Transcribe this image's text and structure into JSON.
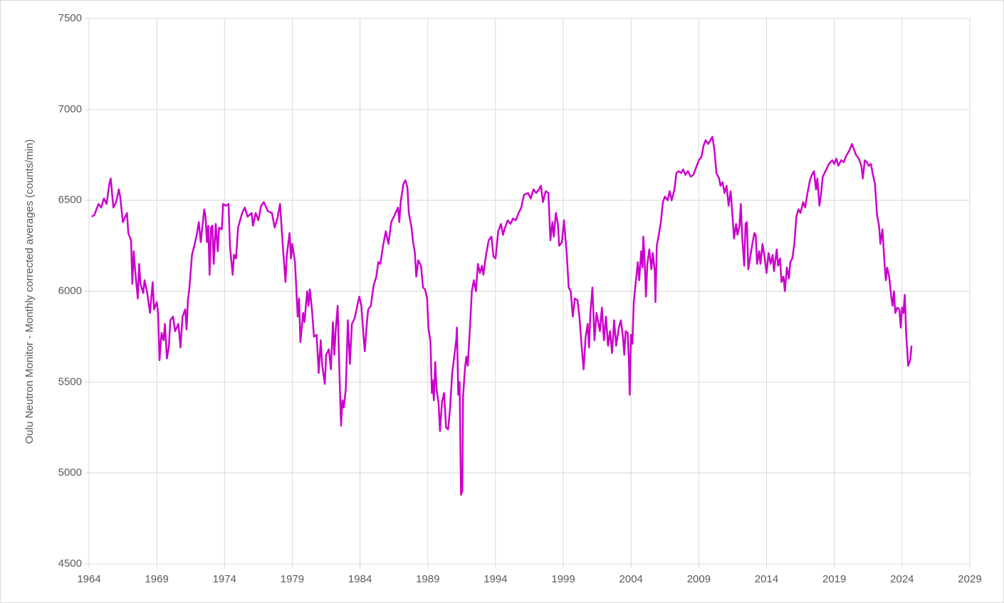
{
  "chart_data": {
    "type": "line",
    "y_label": "Oulu Neutron Monitor - Monthly corrected averages (counts/min)",
    "color": "#cc00cc",
    "grid": true,
    "xlim": [
      1964,
      2029
    ],
    "xticks": [
      1964,
      1969,
      1974,
      1979,
      1984,
      1989,
      1994,
      1999,
      2004,
      2009,
      2014,
      2019,
      2024,
      2029
    ],
    "ylim": [
      4500,
      7500
    ],
    "yticks": [
      4500,
      5000,
      5500,
      6000,
      6500,
      7000,
      7500
    ],
    "x": [
      1964.2,
      1964.4,
      1964.7,
      1964.9,
      1965.1,
      1965.3,
      1965.5,
      1965.6,
      1965.8,
      1966.0,
      1966.2,
      1966.3,
      1966.5,
      1966.8,
      1966.9,
      1967.1,
      1967.2,
      1967.3,
      1967.4,
      1967.6,
      1967.7,
      1967.8,
      1968.0,
      1968.1,
      1968.3,
      1968.5,
      1968.7,
      1968.8,
      1969.0,
      1969.1,
      1969.2,
      1969.35,
      1969.5,
      1969.6,
      1969.75,
      1969.9,
      1970.0,
      1970.2,
      1970.35,
      1970.6,
      1970.75,
      1970.9,
      1971.1,
      1971.2,
      1971.3,
      1971.4,
      1971.6,
      1971.8,
      1971.95,
      1972.1,
      1972.25,
      1972.5,
      1972.6,
      1972.7,
      1972.8,
      1972.9,
      1973.0,
      1973.1,
      1973.2,
      1973.35,
      1973.5,
      1973.6,
      1973.8,
      1973.9,
      1974.1,
      1974.3,
      1974.4,
      1974.6,
      1974.7,
      1974.85,
      1975.0,
      1975.3,
      1975.5,
      1975.7,
      1976.0,
      1976.1,
      1976.3,
      1976.5,
      1976.7,
      1976.9,
      1977.2,
      1977.5,
      1977.7,
      1977.9,
      1978.1,
      1978.3,
      1978.5,
      1978.6,
      1978.8,
      1978.9,
      1979.0,
      1979.2,
      1979.4,
      1979.5,
      1979.6,
      1979.8,
      1979.9,
      1980.1,
      1980.2,
      1980.3,
      1980.45,
      1980.6,
      1980.8,
      1980.95,
      1981.1,
      1981.2,
      1981.4,
      1981.5,
      1981.7,
      1981.85,
      1982.0,
      1982.1,
      1982.2,
      1982.35,
      1982.5,
      1982.6,
      1982.7,
      1982.8,
      1982.95,
      1983.1,
      1983.25,
      1983.4,
      1983.6,
      1983.8,
      1983.95,
      1984.1,
      1984.2,
      1984.35,
      1984.5,
      1984.6,
      1984.8,
      1985.0,
      1985.2,
      1985.35,
      1985.5,
      1985.7,
      1985.9,
      1986.1,
      1986.3,
      1986.5,
      1986.8,
      1986.9,
      1987.0,
      1987.2,
      1987.35,
      1987.5,
      1987.6,
      1987.8,
      1987.9,
      1988.05,
      1988.15,
      1988.3,
      1988.5,
      1988.65,
      1988.8,
      1988.95,
      1989.05,
      1989.2,
      1989.3,
      1989.35,
      1989.45,
      1989.55,
      1989.65,
      1989.8,
      1989.9,
      1990.05,
      1990.2,
      1990.35,
      1990.5,
      1990.65,
      1990.8,
      1990.95,
      1991.1,
      1991.15,
      1991.25,
      1991.35,
      1991.45,
      1991.55,
      1991.6,
      1991.75,
      1991.85,
      1991.95,
      1992.1,
      1992.25,
      1992.4,
      1992.55,
      1992.7,
      1992.85,
      1993.0,
      1993.1,
      1993.3,
      1993.5,
      1993.7,
      1993.85,
      1994.0,
      1994.2,
      1994.4,
      1994.55,
      1994.7,
      1994.9,
      1995.1,
      1995.3,
      1995.5,
      1995.7,
      1995.9,
      1996.1,
      1996.4,
      1996.6,
      1996.8,
      1997.0,
      1997.2,
      1997.35,
      1997.5,
      1997.7,
      1997.9,
      1998.05,
      1998.2,
      1998.3,
      1998.45,
      1998.6,
      1998.7,
      1998.9,
      1999.05,
      1999.25,
      1999.4,
      1999.55,
      1999.7,
      1999.85,
      2000.05,
      2000.2,
      2000.35,
      2000.5,
      2000.65,
      2000.8,
      2000.9,
      2001.0,
      2001.15,
      2001.3,
      2001.45,
      2001.55,
      2001.7,
      2001.85,
      2002.0,
      2002.15,
      2002.3,
      2002.45,
      2002.6,
      2002.75,
      2002.9,
      2003.1,
      2003.25,
      2003.4,
      2003.5,
      2003.6,
      2003.75,
      2003.85,
      2003.9,
      2004.0,
      2004.1,
      2004.2,
      2004.35,
      2004.5,
      2004.6,
      2004.75,
      2004.85,
      2004.9,
      2005.0,
      2005.1,
      2005.2,
      2005.35,
      2005.5,
      2005.6,
      2005.75,
      2005.8,
      2005.9,
      2006.05,
      2006.2,
      2006.35,
      2006.5,
      2006.7,
      2006.85,
      2007.0,
      2007.2,
      2007.35,
      2007.5,
      2007.7,
      2007.85,
      2008.0,
      2008.2,
      2008.4,
      2008.6,
      2008.8,
      2009.0,
      2009.2,
      2009.35,
      2009.5,
      2009.7,
      2009.85,
      2010.0,
      2010.15,
      2010.3,
      2010.5,
      2010.6,
      2010.75,
      2010.9,
      2011.05,
      2011.2,
      2011.35,
      2011.5,
      2011.6,
      2011.75,
      2011.85,
      2012.0,
      2012.1,
      2012.2,
      2012.35,
      2012.45,
      2012.55,
      2012.65,
      2012.8,
      2012.95,
      2013.1,
      2013.2,
      2013.3,
      2013.45,
      2013.55,
      2013.7,
      2013.85,
      2014.0,
      2014.15,
      2014.3,
      2014.45,
      2014.55,
      2014.75,
      2014.85,
      2015.0,
      2015.1,
      2015.25,
      2015.35,
      2015.5,
      2015.65,
      2015.75,
      2015.9,
      2016.05,
      2016.2,
      2016.35,
      2016.5,
      2016.7,
      2016.85,
      2017.0,
      2017.2,
      2017.35,
      2017.5,
      2017.65,
      2017.75,
      2017.9,
      2018.0,
      2018.15,
      2018.35,
      2018.6,
      2018.85,
      2019.0,
      2019.15,
      2019.3,
      2019.5,
      2019.7,
      2019.85,
      2020.0,
      2020.15,
      2020.3,
      2020.45,
      2020.6,
      2020.8,
      2021.0,
      2021.1,
      2021.25,
      2021.4,
      2021.55,
      2021.7,
      2021.85,
      2022.0,
      2022.15,
      2022.3,
      2022.4,
      2022.55,
      2022.7,
      2022.8,
      2022.9,
      2023.05,
      2023.2,
      2023.3,
      2023.4,
      2023.5,
      2023.65,
      2023.8,
      2023.9,
      2024.0,
      2024.1,
      2024.2,
      2024.3,
      2024.45,
      2024.6,
      2024.7
    ],
    "values": [
      6410,
      6420,
      6480,
      6460,
      6510,
      6480,
      6590,
      6620,
      6460,
      6490,
      6560,
      6520,
      6380,
      6430,
      6320,
      6280,
      6040,
      6220,
      6120,
      5960,
      6150,
      6040,
      5990,
      6060,
      5990,
      5880,
      6050,
      5900,
      5940,
      5880,
      5620,
      5770,
      5730,
      5820,
      5630,
      5700,
      5840,
      5860,
      5780,
      5820,
      5690,
      5860,
      5900,
      5790,
      5950,
      6010,
      6200,
      6260,
      6310,
      6380,
      6270,
      6450,
      6410,
      6270,
      6360,
      6090,
      6350,
      6360,
      6150,
      6370,
      6220,
      6350,
      6340,
      6480,
      6470,
      6480,
      6250,
      6090,
      6200,
      6180,
      6350,
      6430,
      6460,
      6410,
      6430,
      6360,
      6430,
      6390,
      6470,
      6490,
      6440,
      6430,
      6350,
      6400,
      6480,
      6250,
      6050,
      6200,
      6320,
      6180,
      6260,
      6160,
      5860,
      5960,
      5720,
      5880,
      5830,
      6000,
      5920,
      6010,
      5900,
      5750,
      5760,
      5550,
      5730,
      5600,
      5490,
      5650,
      5680,
      5570,
      5830,
      5650,
      5780,
      5920,
      5500,
      5260,
      5400,
      5360,
      5460,
      5840,
      5600,
      5820,
      5850,
      5920,
      5970,
      5920,
      5810,
      5670,
      5820,
      5900,
      5920,
      6030,
      6080,
      6160,
      6150,
      6250,
      6330,
      6260,
      6380,
      6410,
      6460,
      6380,
      6490,
      6590,
      6610,
      6570,
      6430,
      6350,
      6280,
      6210,
      6080,
      6170,
      6140,
      6020,
      6010,
      5960,
      5800,
      5720,
      5440,
      5510,
      5400,
      5610,
      5460,
      5380,
      5230,
      5390,
      5440,
      5250,
      5240,
      5360,
      5550,
      5640,
      5730,
      5800,
      5430,
      5500,
      4880,
      4900,
      5420,
      5580,
      5640,
      5590,
      5780,
      6000,
      6060,
      6000,
      6150,
      6100,
      6140,
      6090,
      6200,
      6280,
      6300,
      6190,
      6180,
      6330,
      6370,
      6310,
      6350,
      6390,
      6370,
      6400,
      6390,
      6430,
      6460,
      6530,
      6540,
      6510,
      6560,
      6540,
      6560,
      6580,
      6490,
      6550,
      6540,
      6280,
      6380,
      6300,
      6430,
      6370,
      6250,
      6270,
      6390,
      6210,
      6020,
      6000,
      5860,
      5960,
      5950,
      5850,
      5700,
      5570,
      5750,
      5820,
      5690,
      5880,
      6020,
      5730,
      5880,
      5840,
      5780,
      5910,
      5730,
      5860,
      5700,
      5780,
      5660,
      5840,
      5700,
      5800,
      5840,
      5750,
      5650,
      5780,
      5770,
      5600,
      5430,
      5760,
      5710,
      5940,
      6050,
      6160,
      6060,
      6220,
      6130,
      6300,
      6180,
      5970,
      6150,
      6230,
      6120,
      6210,
      6110,
      5940,
      6250,
      6310,
      6380,
      6490,
      6520,
      6500,
      6550,
      6500,
      6560,
      6650,
      6660,
      6650,
      6670,
      6640,
      6660,
      6630,
      6640,
      6680,
      6720,
      6740,
      6800,
      6830,
      6810,
      6830,
      6850,
      6780,
      6650,
      6620,
      6580,
      6600,
      6540,
      6580,
      6470,
      6550,
      6400,
      6290,
      6370,
      6310,
      6360,
      6480,
      6300,
      6140,
      6370,
      6380,
      6120,
      6190,
      6260,
      6320,
      6310,
      6150,
      6220,
      6150,
      6260,
      6190,
      6100,
      6210,
      6150,
      6200,
      6110,
      6230,
      6140,
      6180,
      6050,
      6080,
      6000,
      6130,
      6070,
      6160,
      6180,
      6260,
      6410,
      6450,
      6430,
      6490,
      6460,
      6530,
      6610,
      6640,
      6660,
      6560,
      6620,
      6470,
      6520,
      6630,
      6660,
      6700,
      6720,
      6700,
      6730,
      6690,
      6720,
      6710,
      6740,
      6760,
      6780,
      6810,
      6780,
      6750,
      6730,
      6690,
      6620,
      6720,
      6710,
      6690,
      6700,
      6640,
      6590,
      6420,
      6360,
      6260,
      6340,
      6160,
      6060,
      6130,
      6080,
      5970,
      5920,
      6000,
      5880,
      5910,
      5900,
      5800,
      5910,
      5880,
      5980,
      5770,
      5590,
      5620,
      5700
    ]
  }
}
